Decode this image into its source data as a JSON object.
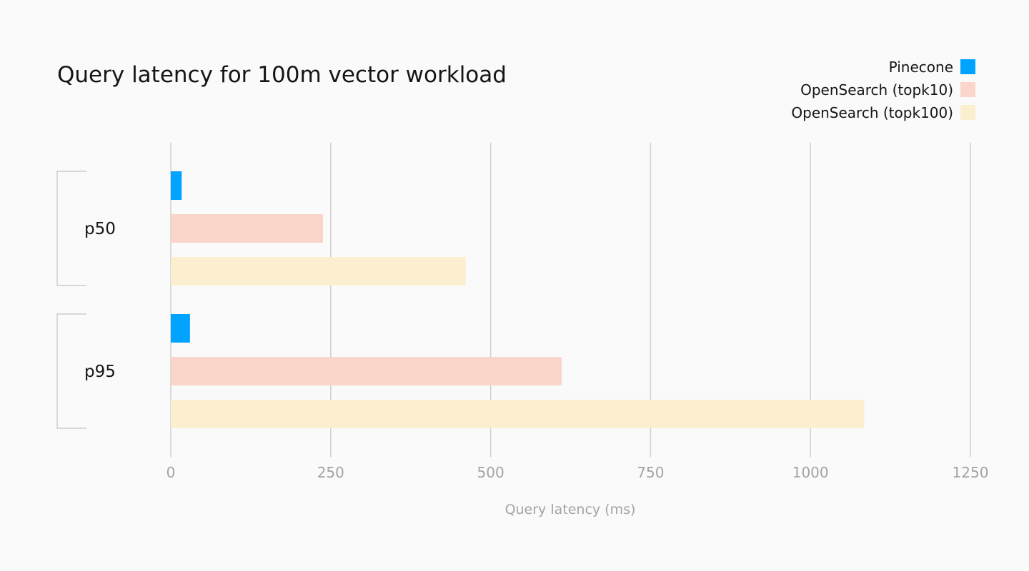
{
  "chart_data": {
    "type": "bar",
    "orientation": "horizontal",
    "title": "Query latency for 100m vector workload",
    "xlabel": "Query latency (ms)",
    "xlim": [
      0,
      1250
    ],
    "xticks": [
      0,
      250,
      500,
      750,
      1000,
      1250
    ],
    "grid": true,
    "legend_position": "top-right",
    "categories": [
      "p50",
      "p95"
    ],
    "series": [
      {
        "name": "Pinecone",
        "color": "#00a3ff",
        "values": [
          17,
          30
        ]
      },
      {
        "name": "OpenSearch (topk10)",
        "color": "#fad5c9",
        "values": [
          238,
          611
        ]
      },
      {
        "name": "OpenSearch (topk100)",
        "color": "#fbefcf",
        "values": [
          461,
          1084
        ]
      }
    ]
  }
}
